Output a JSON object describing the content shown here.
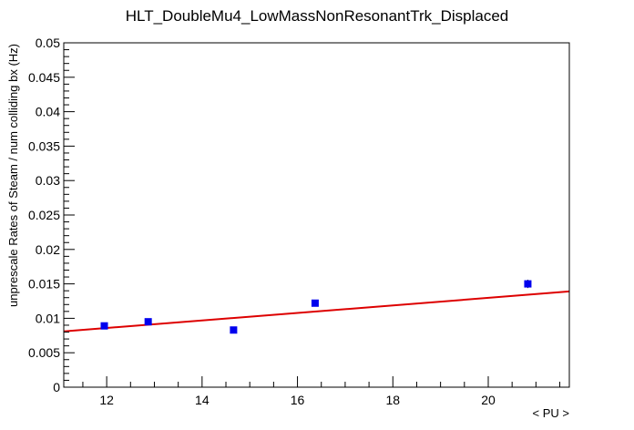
{
  "chart_data": {
    "type": "scatter",
    "title": "HLT_DoubleMu4_LowMassNonResonantTrk_Displaced",
    "xlabel": "< PU >",
    "ylabel": "unprescale Rates of Steam / num colliding bx (Hz)",
    "xlim": [
      11.1,
      21.7
    ],
    "ylim": [
      0,
      0.05
    ],
    "x_ticks": [
      12,
      14,
      16,
      18,
      20
    ],
    "x_tick_labels": [
      "12",
      "14",
      "16",
      "18",
      "20"
    ],
    "y_ticks": [
      0,
      0.005,
      0.01,
      0.015,
      0.02,
      0.025,
      0.03,
      0.035,
      0.04,
      0.045,
      0.05
    ],
    "y_tick_labels": [
      "0",
      "0.005",
      "0.01",
      "0.015",
      "0.02",
      "0.025",
      "0.03",
      "0.035",
      "0.04",
      "0.045",
      "0.05"
    ],
    "grid": false,
    "points": [
      {
        "x": 11.95,
        "y": 0.0089,
        "err": 0.0003
      },
      {
        "x": 12.87,
        "y": 0.0095,
        "err": 0.0003
      },
      {
        "x": 14.66,
        "y": 0.0083,
        "err": 0.0003
      },
      {
        "x": 16.37,
        "y": 0.0122,
        "err": 0.0003
      },
      {
        "x": 20.83,
        "y": 0.015,
        "err": 0.0006
      }
    ],
    "fit": {
      "x": [
        11.1,
        21.7
      ],
      "y": [
        0.0081,
        0.0139
      ]
    },
    "colors": {
      "points": "#0000ee",
      "fit": "#dd0000",
      "axis": "#000000"
    }
  }
}
